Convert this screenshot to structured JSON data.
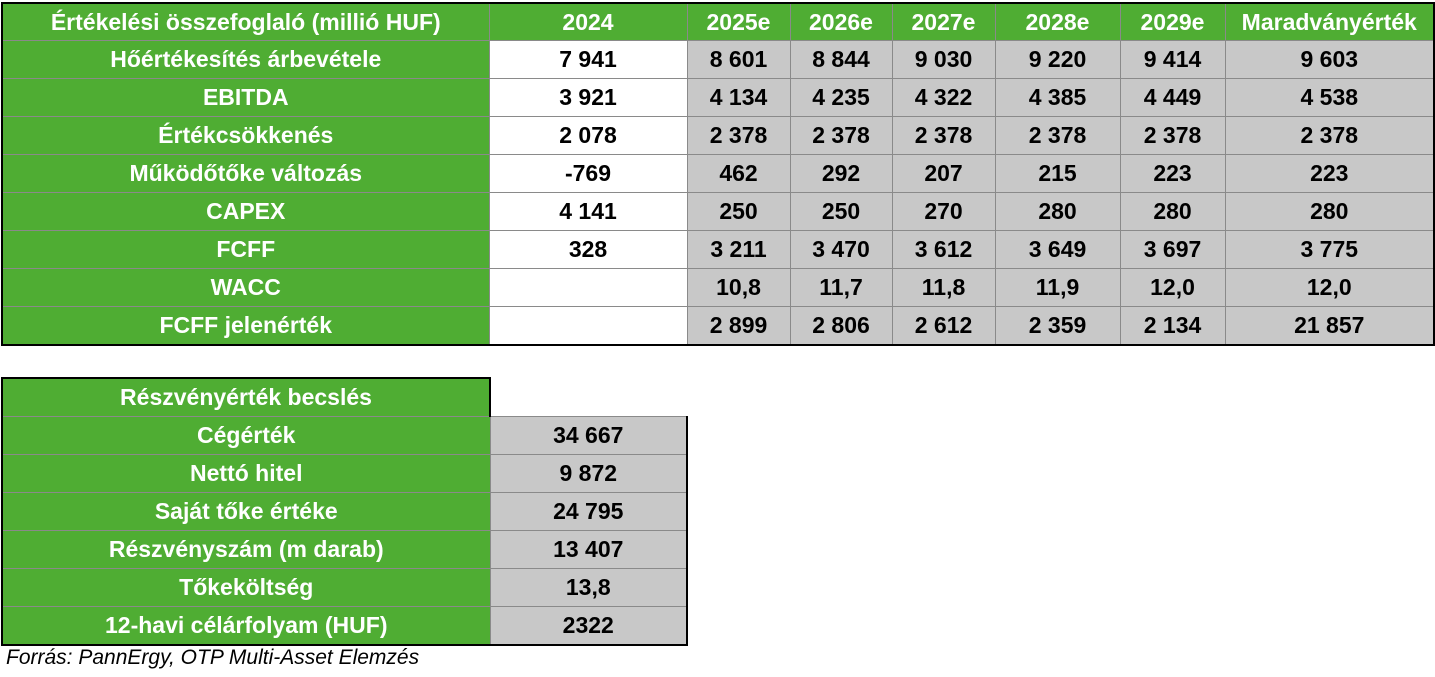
{
  "valuation": {
    "title": "Értékelési összefoglaló (millió HUF)",
    "columns": [
      "2024",
      "2025e",
      "2026e",
      "2027e",
      "2028e",
      "2029e",
      "Maradványérték"
    ],
    "rows": [
      {
        "label": "Hőértékesítés árbevétele",
        "values": [
          "7 941",
          "8 601",
          "8 844",
          "9 030",
          "9 220",
          "9 414",
          "9 603"
        ]
      },
      {
        "label": "EBITDA",
        "values": [
          "3 921",
          "4 134",
          "4 235",
          "4 322",
          "4 385",
          "4 449",
          "4 538"
        ]
      },
      {
        "label": "Értékcsökkenés",
        "values": [
          "2 078",
          "2 378",
          "2 378",
          "2 378",
          "2 378",
          "2 378",
          "2 378"
        ]
      },
      {
        "label": "Működőtőke változás",
        "values": [
          "-769",
          "462",
          "292",
          "207",
          "215",
          "223",
          "223"
        ]
      },
      {
        "label": "CAPEX",
        "values": [
          "4 141",
          "250",
          "250",
          "270",
          "280",
          "280",
          "280"
        ]
      },
      {
        "label": "FCFF",
        "values": [
          "328",
          "3 211",
          "3 470",
          "3 612",
          "3 649",
          "3 697",
          "3 775"
        ]
      },
      {
        "label": "WACC",
        "values": [
          "",
          "10,8",
          "11,7",
          "11,8",
          "11,9",
          "12,0",
          "12,0"
        ]
      },
      {
        "label": "FCFF jelenérték",
        "values": [
          "",
          "2 899",
          "2 806",
          "2 612",
          "2 359",
          "2 134",
          "21 857"
        ]
      }
    ]
  },
  "equity": {
    "title": "Részvényérték becslés",
    "rows": [
      {
        "label": "Cégérték",
        "value": "34 667"
      },
      {
        "label": "Nettó hitel",
        "value": "9 872"
      },
      {
        "label": "Saját tőke értéke",
        "value": "24 795"
      },
      {
        "label": "Részvényszám (m darab)",
        "value": "13 407"
      },
      {
        "label": "Tőkeköltség",
        "value": "13,8"
      },
      {
        "label": "12-havi célárfolyam (HUF)",
        "value": "2322"
      }
    ]
  },
  "source": "Forrás: PannErgy, OTP Multi-Asset Elemzés",
  "colors": {
    "label_green": "#4fad33",
    "value_gray": "#c8c8c8",
    "value_white": "#ffffff"
  }
}
